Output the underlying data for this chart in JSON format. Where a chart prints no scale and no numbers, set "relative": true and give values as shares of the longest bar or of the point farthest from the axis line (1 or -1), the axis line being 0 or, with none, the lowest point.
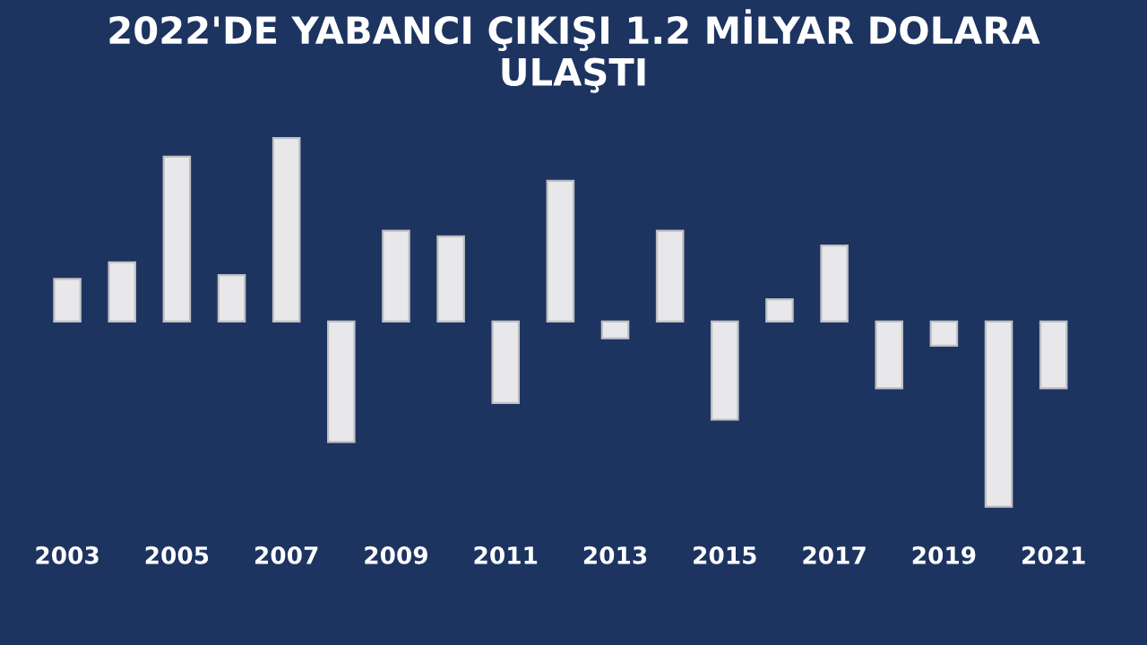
{
  "chart_data": {
    "type": "bar",
    "title": "2022'DE YABANCI ÇIKIŞI 1.2 MİLYAR DOLARA\nULAŞTI",
    "categories": [
      "2003",
      null,
      "2005",
      null,
      "2007",
      null,
      "2009",
      null,
      "2011",
      null,
      "2013",
      null,
      "2015",
      null,
      "2017",
      null,
      "2019",
      null,
      "2021"
    ],
    "values": [
      0.23,
      0.32,
      0.89,
      0.25,
      0.99,
      -0.65,
      0.49,
      0.46,
      -0.44,
      0.76,
      -0.09,
      0.49,
      -0.53,
      0.12,
      0.41,
      -0.36,
      -0.13,
      -1,
      -0.36
    ],
    "color": "#e8e8ea",
    "relative": true,
    "grid": false,
    "legend": false
  }
}
